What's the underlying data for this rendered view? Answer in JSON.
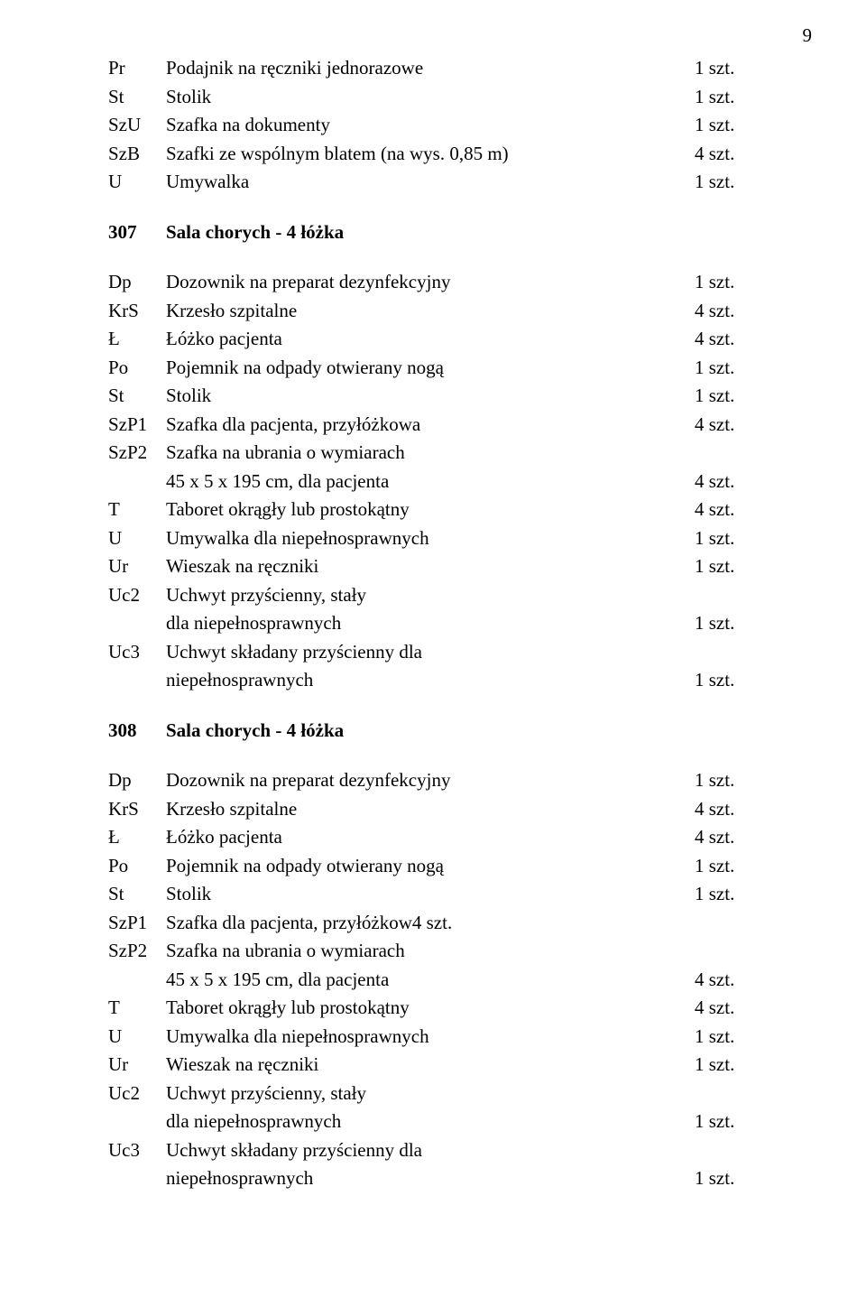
{
  "page_number": "9",
  "top_block": {
    "rows": [
      {
        "code": "Pr",
        "desc": "Podajnik na ręczniki jednorazowe",
        "qty": "1 szt."
      },
      {
        "code": "St",
        "desc": "Stolik",
        "qty": "1 szt."
      },
      {
        "code": "SzU",
        "desc": "Szafka na dokumenty",
        "qty": "1 szt."
      },
      {
        "code": "SzB",
        "desc": "Szafki ze wspólnym blatem (na wys. 0,85 m)",
        "qty": "4 szt."
      },
      {
        "code": "U",
        "desc": "Umywalka",
        "qty": "1 szt."
      }
    ]
  },
  "section_307": {
    "number": "307",
    "title": "Sala chorych - 4 łóżka",
    "rows": [
      {
        "code": "Dp",
        "desc": "Dozownik na preparat dezynfekcyjny",
        "qty": "1 szt."
      },
      {
        "code": "KrS",
        "desc": "Krzesło szpitalne",
        "qty": "4 szt."
      },
      {
        "code": "Ł",
        "desc": "Łóżko pacjenta",
        "qty": "4 szt."
      },
      {
        "code": "Po",
        "desc": "Pojemnik na odpady otwierany nogą",
        "qty": "1 szt."
      },
      {
        "code": "St",
        "desc": "Stolik",
        "qty": "1 szt."
      },
      {
        "code": "SzP1",
        "desc": "Szafka dla pacjenta, przyłóżkowa",
        "qty": "4 szt."
      },
      {
        "code": "SzP2",
        "desc": "Szafka na ubrania o wymiarach",
        "qty": ""
      },
      {
        "code": "",
        "desc": "45 x 5 x 195 cm, dla pacjenta",
        "qty": "4 szt."
      },
      {
        "code": "T",
        "desc": "Taboret okrągły lub prostokątny",
        "qty": "4 szt."
      },
      {
        "code": "U",
        "desc": "Umywalka dla niepełnosprawnych",
        "qty": "1 szt."
      },
      {
        "code": "Ur",
        "desc": "Wieszak na ręczniki",
        "qty": "1 szt."
      },
      {
        "code": "Uc2",
        "desc": "Uchwyt przyścienny, stały",
        "qty": ""
      },
      {
        "code": "",
        "desc": "dla niepełnosprawnych",
        "qty": "1 szt."
      },
      {
        "code": "Uc3",
        "desc": "Uchwyt składany przyścienny dla",
        "qty": ""
      },
      {
        "code": "",
        "desc": "niepełnosprawnych",
        "qty": "1 szt."
      }
    ]
  },
  "section_308": {
    "number": "308",
    "title": "Sala chorych - 4 łóżka",
    "rows": [
      {
        "code": "Dp",
        "desc": "Dozownik na preparat dezynfekcyjny",
        "qty": "1 szt."
      },
      {
        "code": "KrS",
        "desc": "Krzesło szpitalne",
        "qty": "4 szt."
      },
      {
        "code": "Ł",
        "desc": "Łóżko pacjenta",
        "qty": "4 szt."
      },
      {
        "code": "Po",
        "desc": "Pojemnik na odpady otwierany nogą",
        "qty": "1 szt."
      },
      {
        "code": "St",
        "desc": "Stolik",
        "qty": "1 szt."
      },
      {
        "code": "SzP1",
        "desc": "Szafka dla pacjenta, przyłóżkow4 szt.",
        "qty": ""
      },
      {
        "code": "SzP2",
        "desc": "Szafka na ubrania o wymiarach",
        "qty": ""
      },
      {
        "code": "",
        "desc": "45 x 5 x 195 cm, dla pacjenta",
        "qty": "4 szt."
      },
      {
        "code": "T",
        "desc": "Taboret okrągły lub prostokątny",
        "qty": "4 szt."
      },
      {
        "code": "U",
        "desc": "Umywalka dla niepełnosprawnych",
        "qty": "1 szt."
      },
      {
        "code": "Ur",
        "desc": "Wieszak na ręczniki",
        "qty": "1 szt."
      },
      {
        "code": "Uc2",
        "desc": "Uchwyt przyścienny, stały",
        "qty": ""
      },
      {
        "code": "",
        "desc": "dla niepełnosprawnych",
        "qty": "1 szt."
      },
      {
        "code": "Uc3",
        "desc": "Uchwyt składany przyścienny dla",
        "qty": ""
      },
      {
        "code": "",
        "desc": "niepełnosprawnych",
        "qty": "1 szt."
      }
    ]
  }
}
